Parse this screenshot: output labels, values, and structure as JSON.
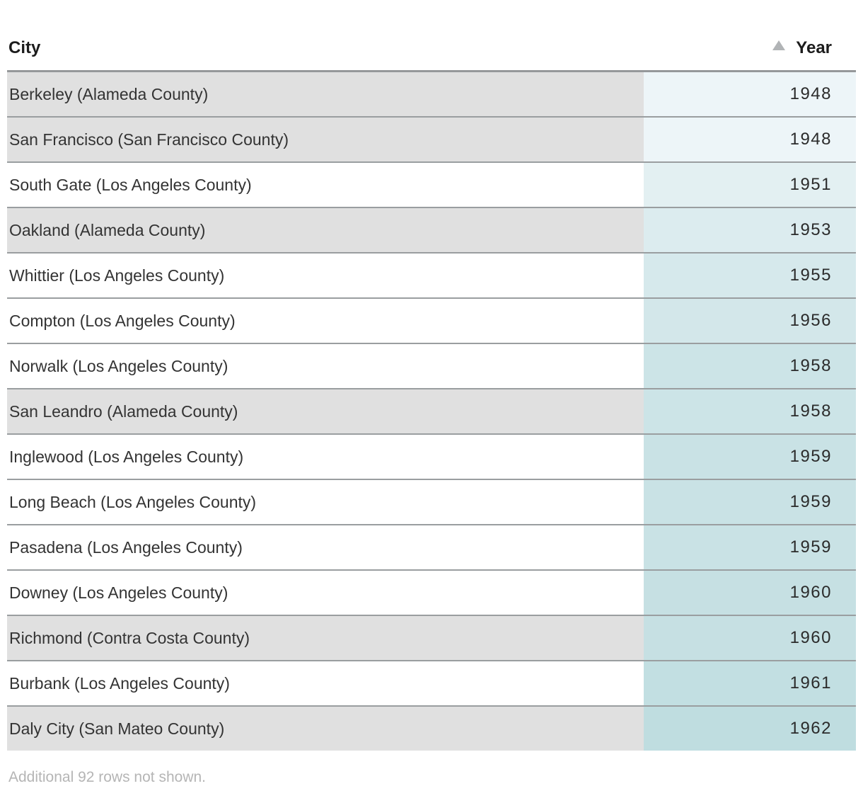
{
  "chart_data": {
    "type": "table",
    "columns": [
      {
        "label": "City",
        "align": "left"
      },
      {
        "label": "Year",
        "align": "right",
        "sorted": "ascending"
      }
    ],
    "sort_icon": "ascending-triangle",
    "rows": [
      {
        "city": "Berkeley (Alameda County)",
        "year": "1948",
        "highlighted": true,
        "city_bg": "#e0e0e0",
        "year_bg": "#edf5f8"
      },
      {
        "city": "San Francisco (San Francisco County)",
        "year": "1948",
        "highlighted": true,
        "city_bg": "#e0e0e0",
        "year_bg": "#edf5f8"
      },
      {
        "city": "South Gate (Los Angeles County)",
        "year": "1951",
        "highlighted": false,
        "city_bg": "#ffffff",
        "year_bg": "#e3f0f2"
      },
      {
        "city": "Oakland (Alameda County)",
        "year": "1953",
        "highlighted": true,
        "city_bg": "#e0e0e0",
        "year_bg": "#dcecef"
      },
      {
        "city": "Whittier (Los Angeles County)",
        "year": "1955",
        "highlighted": false,
        "city_bg": "#ffffff",
        "year_bg": "#d6e9ec"
      },
      {
        "city": "Compton (Los Angeles County)",
        "year": "1956",
        "highlighted": false,
        "city_bg": "#ffffff",
        "year_bg": "#d3e7ea"
      },
      {
        "city": "Norwalk (Los Angeles County)",
        "year": "1958",
        "highlighted": false,
        "city_bg": "#ffffff",
        "year_bg": "#cce4e7"
      },
      {
        "city": "San Leandro (Alameda County)",
        "year": "1958",
        "highlighted": true,
        "city_bg": "#e0e0e0",
        "year_bg": "#cce4e7"
      },
      {
        "city": "Inglewood (Los Angeles County)",
        "year": "1959",
        "highlighted": false,
        "city_bg": "#ffffff",
        "year_bg": "#c9e2e5"
      },
      {
        "city": "Long Beach (Los Angeles County)",
        "year": "1959",
        "highlighted": false,
        "city_bg": "#ffffff",
        "year_bg": "#c9e2e5"
      },
      {
        "city": "Pasadena (Los Angeles County)",
        "year": "1959",
        "highlighted": false,
        "city_bg": "#ffffff",
        "year_bg": "#c9e2e5"
      },
      {
        "city": "Downey (Los Angeles County)",
        "year": "1960",
        "highlighted": false,
        "city_bg": "#ffffff",
        "year_bg": "#c6e0e3"
      },
      {
        "city": "Richmond (Contra Costa County)",
        "year": "1960",
        "highlighted": true,
        "city_bg": "#e0e0e0",
        "year_bg": "#c6e0e3"
      },
      {
        "city": "Burbank (Los Angeles County)",
        "year": "1961",
        "highlighted": false,
        "city_bg": "#ffffff",
        "year_bg": "#c2dfe2"
      },
      {
        "city": "Daly City (San Mateo County)",
        "year": "1962",
        "highlighted": true,
        "city_bg": "#e0e0e0",
        "year_bg": "#bfdde0"
      }
    ],
    "footer_note": "Additional 92 rows not shown."
  },
  "colors": {
    "highlight_cell_bg": "#e0e0e0",
    "default_cell_bg": "#ffffff",
    "year_scale_start": "#edf5f8",
    "year_scale_end": "#bfdde0",
    "row_border": "#9a9ea0",
    "header_border": "#95989a",
    "header_text": "#1c1c1c",
    "body_text": "#333333",
    "year_text": "#2b2b2b",
    "footer_text": "#b5b5b5",
    "sort_icon_color": "#b1b4b6"
  }
}
